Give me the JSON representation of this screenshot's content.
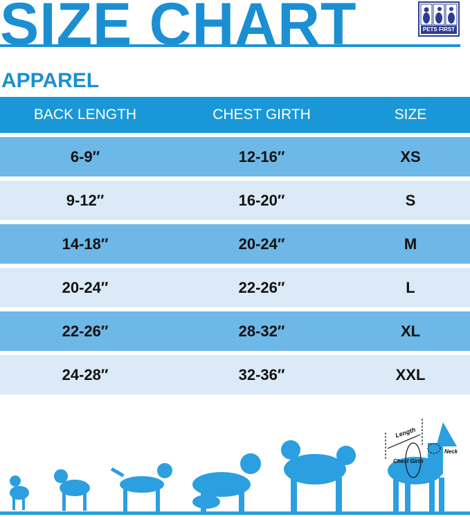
{
  "title": "SIZE CHART",
  "brand": {
    "name": "PETS FIRST",
    "color": "#2c3d8f"
  },
  "section": "APPAREL",
  "colors": {
    "accent": "#1b8fd2",
    "header": "#1a97d6",
    "row_dark": "#6db8e6",
    "row_light": "#dbeaf6"
  },
  "table": {
    "headers": [
      "BACK LENGTH",
      "CHEST GIRTH",
      "SIZE"
    ],
    "rows": [
      [
        "6-9″",
        "12-16″",
        "XS"
      ],
      [
        "9-12″",
        "16-20″",
        "S"
      ],
      [
        "14-18″",
        "20-24″",
        "M"
      ],
      [
        "20-24″",
        "22-26″",
        "L"
      ],
      [
        "22-26″",
        "28-32″",
        "XL"
      ],
      [
        "24-28″",
        "32-36″",
        "XXL"
      ]
    ]
  },
  "diagram": {
    "length": "Length",
    "chest": "Chest Girth",
    "neck": "Neck"
  }
}
